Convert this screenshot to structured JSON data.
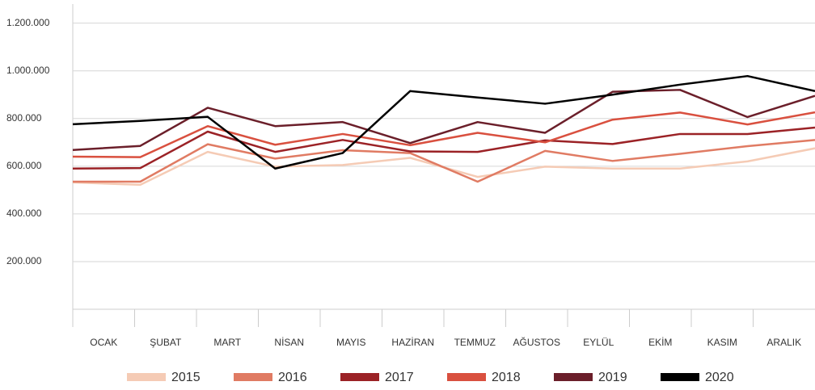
{
  "chart_data": {
    "type": "line",
    "categories": [
      "OCAK",
      "ŞUBAT",
      "MART",
      "NİSAN",
      "MAYIS",
      "HAZİRAN",
      "TEMMUZ",
      "AĞUSTOS",
      "EYLÜL",
      "EKİM",
      "KASIM",
      "ARALIK"
    ],
    "series": [
      {
        "name": "2015",
        "color": "#f5cbb5",
        "values": [
          532000,
          522000,
          660000,
          598000,
          605000,
          635000,
          555000,
          598000,
          590000,
          590000,
          620000,
          675000
        ]
      },
      {
        "name": "2016",
        "color": "#e07b63",
        "values": [
          535000,
          535000,
          692000,
          632000,
          667000,
          655000,
          535000,
          664000,
          622000,
          652000,
          684000,
          710000
        ]
      },
      {
        "name": "2017",
        "color": "#9b2226",
        "values": [
          590000,
          592000,
          745000,
          660000,
          710000,
          662000,
          660000,
          708000,
          693000,
          735000,
          735000,
          762000
        ]
      },
      {
        "name": "2018",
        "color": "#d9503f",
        "values": [
          640000,
          638000,
          768000,
          690000,
          735000,
          688000,
          740000,
          700000,
          795000,
          825000,
          775000,
          826000
        ]
      },
      {
        "name": "2019",
        "color": "#6b1f2a",
        "values": [
          668000,
          685000,
          845000,
          768000,
          785000,
          697000,
          785000,
          740000,
          912000,
          920000,
          806000,
          895000
        ]
      },
      {
        "name": "2020",
        "color": "#000000",
        "values": [
          776000,
          790000,
          807000,
          590000,
          655000,
          915000,
          888000,
          862000,
          900000,
          942000,
          978000,
          915000
        ]
      }
    ],
    "ylim": [
      0,
      1280000
    ],
    "yticks": [
      {
        "value": 200000,
        "label": "200.000"
      },
      {
        "value": 400000,
        "label": "400.000"
      },
      {
        "value": 600000,
        "label": "600.000"
      },
      {
        "value": 800000,
        "label": "800.000"
      },
      {
        "value": 1000000,
        "label": "1.000.000"
      },
      {
        "value": 1200000,
        "label": "1.200.000"
      }
    ],
    "grid": true,
    "legend": "bottom"
  }
}
